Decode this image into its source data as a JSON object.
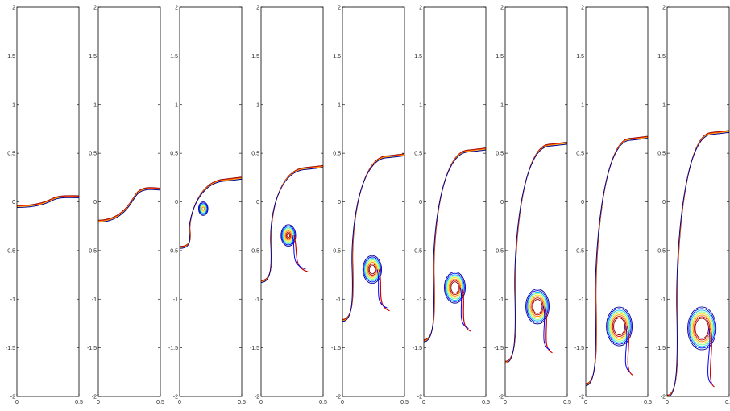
{
  "chart_data": {
    "type": "line",
    "grid": false,
    "legend": "none",
    "xlim": [
      0,
      0.5
    ],
    "ylim": [
      -2,
      2
    ],
    "x_ticks": [
      "0",
      "0.5"
    ],
    "y_ticks": [
      "2",
      "1.5",
      "1",
      "0.5",
      "0",
      "-0.5",
      "-1",
      "-1.5",
      "-2"
    ],
    "contour_colors": [
      "#00008f",
      "#0000ff",
      "#00bfff",
      "#7fff7f",
      "#ffdf00",
      "#ff7f00",
      "#cf0000",
      "#800000"
    ],
    "panels": [
      {
        "interface_left_y": -0.05,
        "interface_right_y": 0.05,
        "spike_tip_y": -0.05,
        "roll": 0
      },
      {
        "interface_left_y": -0.2,
        "interface_right_y": 0.13,
        "spike_tip_y": -0.2,
        "roll": 0.05
      },
      {
        "interface_left_y": -0.47,
        "interface_right_y": 0.24,
        "spike_tip_y": -0.47,
        "roll": 0.2
      },
      {
        "interface_left_y": -0.82,
        "interface_right_y": 0.36,
        "spike_tip_y": -0.82,
        "roll": 0.5
      },
      {
        "interface_left_y": -1.22,
        "interface_right_y": 0.48,
        "spike_tip_y": -1.22,
        "roll": 0.7
      },
      {
        "interface_left_y": -1.43,
        "interface_right_y": 0.54,
        "spike_tip_y": -1.43,
        "roll": 0.8
      },
      {
        "interface_left_y": -1.65,
        "interface_right_y": 0.6,
        "spike_tip_y": -1.65,
        "roll": 0.9
      },
      {
        "interface_left_y": -1.88,
        "interface_right_y": 0.66,
        "spike_tip_y": -1.88,
        "roll": 1.0
      },
      {
        "interface_left_y": -2.0,
        "interface_right_y": 0.72,
        "spike_tip_y": -2.0,
        "roll": 1.1
      }
    ]
  }
}
